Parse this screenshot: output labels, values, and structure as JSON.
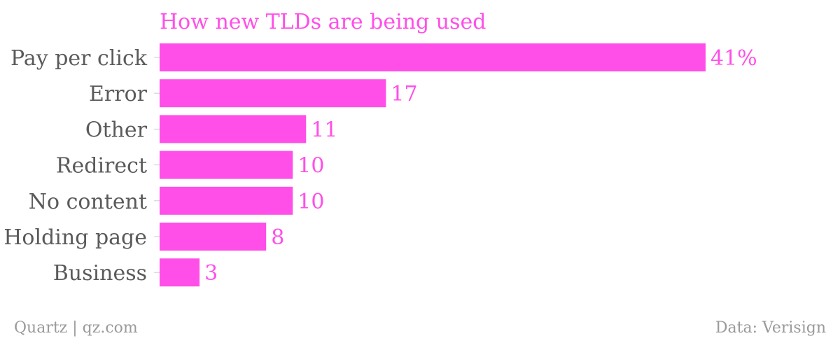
{
  "chart_data": {
    "type": "bar",
    "orientation": "horizontal",
    "title": "How new TLDs are being used",
    "categories": [
      "Pay per click",
      "Error",
      "Other",
      "Redirect",
      "No content",
      "Holding page",
      "Business"
    ],
    "values": [
      41,
      17,
      11,
      10,
      10,
      8,
      3
    ],
    "value_labels": [
      "41%",
      "17",
      "11",
      "10",
      "10",
      "8",
      "3"
    ],
    "unit": "%",
    "xlim": [
      0,
      41
    ],
    "grid": false,
    "legend": "none"
  },
  "colors": {
    "bar": "#ff4fe8",
    "title": "#ff4fe8",
    "label": "#5a5a5a",
    "footer": "#9a9a9a"
  },
  "footer": {
    "source": "Quartz | qz.com",
    "credit": "Data: Verisign"
  }
}
